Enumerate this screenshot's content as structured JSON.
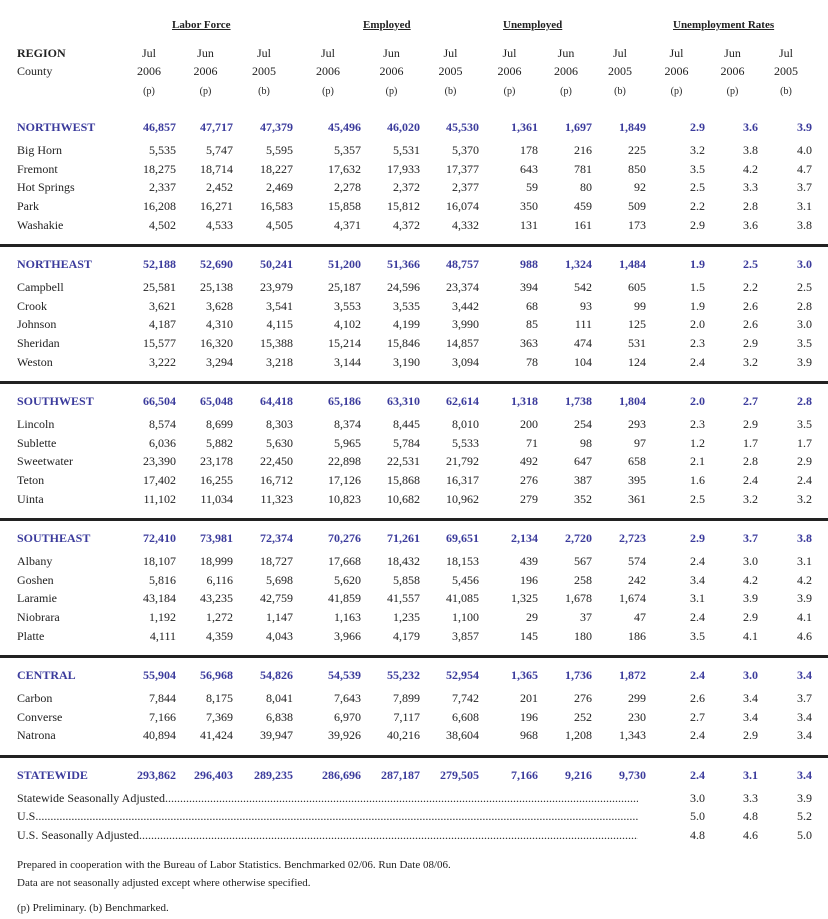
{
  "groups": [
    "Labor Force",
    "Employed",
    "Unemployed",
    "Unemployment Rates"
  ],
  "header": {
    "region_label": "REGION",
    "county_label": "County",
    "months": [
      "Jul",
      "Jun",
      "Jul",
      "Jul",
      "Jun",
      "Jul",
      "Jul",
      "Jun",
      "Jul",
      "Jul",
      "Jun",
      "Jul"
    ],
    "years": [
      "2006",
      "2006",
      "2005",
      "2006",
      "2006",
      "2005",
      "2006",
      "2006",
      "2005",
      "2006",
      "2006",
      "2005"
    ],
    "flags": [
      "(p)",
      "(p)",
      "(b)",
      "(p)",
      "(p)",
      "(b)",
      "(p)",
      "(p)",
      "(b)",
      "(p)",
      "(p)",
      "(b)"
    ]
  },
  "regions": [
    {
      "name": "NORTHWEST",
      "values": [
        "46,857",
        "47,717",
        "47,379",
        "45,496",
        "46,020",
        "45,530",
        "1,361",
        "1,697",
        "1,849",
        "2.9",
        "3.6",
        "3.9"
      ],
      "counties": [
        {
          "name": "Big Horn",
          "values": [
            "5,535",
            "5,747",
            "5,595",
            "5,357",
            "5,531",
            "5,370",
            "178",
            "216",
            "225",
            "3.2",
            "3.8",
            "4.0"
          ]
        },
        {
          "name": "Fremont",
          "values": [
            "18,275",
            "18,714",
            "18,227",
            "17,632",
            "17,933",
            "17,377",
            "643",
            "781",
            "850",
            "3.5",
            "4.2",
            "4.7"
          ]
        },
        {
          "name": "Hot Springs",
          "values": [
            "2,337",
            "2,452",
            "2,469",
            "2,278",
            "2,372",
            "2,377",
            "59",
            "80",
            "92",
            "2.5",
            "3.3",
            "3.7"
          ]
        },
        {
          "name": "Park",
          "values": [
            "16,208",
            "16,271",
            "16,583",
            "15,858",
            "15,812",
            "16,074",
            "350",
            "459",
            "509",
            "2.2",
            "2.8",
            "3.1"
          ]
        },
        {
          "name": "Washakie",
          "values": [
            "4,502",
            "4,533",
            "4,505",
            "4,371",
            "4,372",
            "4,332",
            "131",
            "161",
            "173",
            "2.9",
            "3.6",
            "3.8"
          ]
        }
      ]
    },
    {
      "name": "NORTHEAST",
      "values": [
        "52,188",
        "52,690",
        "50,241",
        "51,200",
        "51,366",
        "48,757",
        "988",
        "1,324",
        "1,484",
        "1.9",
        "2.5",
        "3.0"
      ],
      "counties": [
        {
          "name": "Campbell",
          "values": [
            "25,581",
            "25,138",
            "23,979",
            "25,187",
            "24,596",
            "23,374",
            "394",
            "542",
            "605",
            "1.5",
            "2.2",
            "2.5"
          ]
        },
        {
          "name": "Crook",
          "values": [
            "3,621",
            "3,628",
            "3,541",
            "3,553",
            "3,535",
            "3,442",
            "68",
            "93",
            "99",
            "1.9",
            "2.6",
            "2.8"
          ]
        },
        {
          "name": "Johnson",
          "values": [
            "4,187",
            "4,310",
            "4,115",
            "4,102",
            "4,199",
            "3,990",
            "85",
            "111",
            "125",
            "2.0",
            "2.6",
            "3.0"
          ]
        },
        {
          "name": "Sheridan",
          "values": [
            "15,577",
            "16,320",
            "15,388",
            "15,214",
            "15,846",
            "14,857",
            "363",
            "474",
            "531",
            "2.3",
            "2.9",
            "3.5"
          ]
        },
        {
          "name": "Weston",
          "values": [
            "3,222",
            "3,294",
            "3,218",
            "3,144",
            "3,190",
            "3,094",
            "78",
            "104",
            "124",
            "2.4",
            "3.2",
            "3.9"
          ]
        }
      ]
    },
    {
      "name": "SOUTHWEST",
      "values": [
        "66,504",
        "65,048",
        "64,418",
        "65,186",
        "63,310",
        "62,614",
        "1,318",
        "1,738",
        "1,804",
        "2.0",
        "2.7",
        "2.8"
      ],
      "counties": [
        {
          "name": "Lincoln",
          "values": [
            "8,574",
            "8,699",
            "8,303",
            "8,374",
            "8,445",
            "8,010",
            "200",
            "254",
            "293",
            "2.3",
            "2.9",
            "3.5"
          ]
        },
        {
          "name": "Sublette",
          "values": [
            "6,036",
            "5,882",
            "5,630",
            "5,965",
            "5,784",
            "5,533",
            "71",
            "98",
            "97",
            "1.2",
            "1.7",
            "1.7"
          ]
        },
        {
          "name": "Sweetwater",
          "values": [
            "23,390",
            "23,178",
            "22,450",
            "22,898",
            "22,531",
            "21,792",
            "492",
            "647",
            "658",
            "2.1",
            "2.8",
            "2.9"
          ]
        },
        {
          "name": "Teton",
          "values": [
            "17,402",
            "16,255",
            "16,712",
            "17,126",
            "15,868",
            "16,317",
            "276",
            "387",
            "395",
            "1.6",
            "2.4",
            "2.4"
          ]
        },
        {
          "name": "Uinta",
          "values": [
            "11,102",
            "11,034",
            "11,323",
            "10,823",
            "10,682",
            "10,962",
            "279",
            "352",
            "361",
            "2.5",
            "3.2",
            "3.2"
          ]
        }
      ]
    },
    {
      "name": "SOUTHEAST",
      "values": [
        "72,410",
        "73,981",
        "72,374",
        "70,276",
        "71,261",
        "69,651",
        "2,134",
        "2,720",
        "2,723",
        "2.9",
        "3.7",
        "3.8"
      ],
      "counties": [
        {
          "name": "Albany",
          "values": [
            "18,107",
            "18,999",
            "18,727",
            "17,668",
            "18,432",
            "18,153",
            "439",
            "567",
            "574",
            "2.4",
            "3.0",
            "3.1"
          ]
        },
        {
          "name": "Goshen",
          "values": [
            "5,816",
            "6,116",
            "5,698",
            "5,620",
            "5,858",
            "5,456",
            "196",
            "258",
            "242",
            "3.4",
            "4.2",
            "4.2"
          ]
        },
        {
          "name": "Laramie",
          "values": [
            "43,184",
            "43,235",
            "42,759",
            "41,859",
            "41,557",
            "41,085",
            "1,325",
            "1,678",
            "1,674",
            "3.1",
            "3.9",
            "3.9"
          ]
        },
        {
          "name": "Niobrara",
          "values": [
            "1,192",
            "1,272",
            "1,147",
            "1,163",
            "1,235",
            "1,100",
            "29",
            "37",
            "47",
            "2.4",
            "2.9",
            "4.1"
          ]
        },
        {
          "name": "Platte",
          "values": [
            "4,111",
            "4,359",
            "4,043",
            "3,966",
            "4,179",
            "3,857",
            "145",
            "180",
            "186",
            "3.5",
            "4.1",
            "4.6"
          ]
        }
      ]
    },
    {
      "name": "CENTRAL",
      "values": [
        "55,904",
        "56,968",
        "54,826",
        "54,539",
        "55,232",
        "52,954",
        "1,365",
        "1,736",
        "1,872",
        "2.4",
        "3.0",
        "3.4"
      ],
      "counties": [
        {
          "name": "Carbon",
          "values": [
            "7,844",
            "8,175",
            "8,041",
            "7,643",
            "7,899",
            "7,742",
            "201",
            "276",
            "299",
            "2.6",
            "3.4",
            "3.7"
          ]
        },
        {
          "name": "Converse",
          "values": [
            "7,166",
            "7,369",
            "6,838",
            "6,970",
            "7,117",
            "6,608",
            "196",
            "252",
            "230",
            "2.7",
            "3.4",
            "3.4"
          ]
        },
        {
          "name": "Natrona",
          "values": [
            "40,894",
            "41,424",
            "39,947",
            "39,926",
            "40,216",
            "38,604",
            "968",
            "1,208",
            "1,343",
            "2.4",
            "2.9",
            "3.4"
          ]
        }
      ]
    }
  ],
  "statewide": {
    "name": "STATEWIDE",
    "values": [
      "293,862",
      "296,403",
      "289,235",
      "286,696",
      "287,187",
      "279,505",
      "7,166",
      "9,216",
      "9,730",
      "2.4",
      "3.1",
      "3.4"
    ]
  },
  "rate_rows": [
    {
      "label": "Statewide Seasonally Adjusted",
      "values": [
        "3.0",
        "3.3",
        "3.9"
      ]
    },
    {
      "label": "U.S.",
      "values": [
        "5.0",
        "4.8",
        "5.2"
      ]
    },
    {
      "label": "U.S. Seasonally Adjusted",
      "values": [
        "4.8",
        "4.6",
        "5.0"
      ]
    }
  ],
  "footnotes": [
    "Prepared in cooperation with the Bureau of Labor Statistics. Benchmarked 02/06. Run Date 08/06.",
    "Data are not seasonally adjusted except where otherwise specified.",
    "(p) Preliminary.  (b) Benchmarked."
  ],
  "colors": {
    "region": "#3b3b9c",
    "rule": "#222222"
  }
}
